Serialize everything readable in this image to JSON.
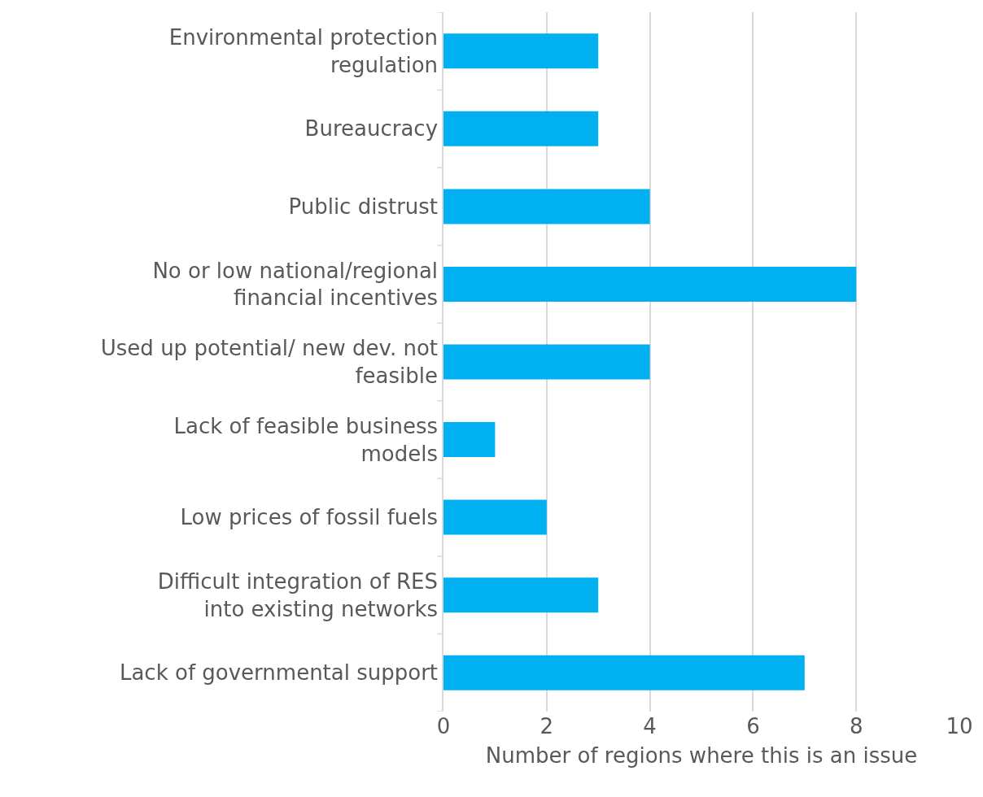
{
  "chart_data": {
    "type": "bar",
    "orientation": "horizontal",
    "xlabel": "Number of regions where this is an issue",
    "categories": [
      "Environmental protection regulation",
      "Bureaucracy",
      "Public distrust",
      "No or low national/regional financial incentives",
      "Used up potential/ new dev. not feasible",
      "Lack of feasible business models",
      "Low prices of fossil fuels",
      "Difficult integration of RES into existing networks",
      "Lack of governmental support"
    ],
    "values": [
      3,
      3,
      4,
      8,
      4,
      1,
      2,
      3,
      7
    ],
    "color": "#00b0f0",
    "xlim": [
      0,
      10
    ],
    "xticks": [
      0,
      2,
      4,
      6,
      8,
      10
    ],
    "grid": "x"
  }
}
